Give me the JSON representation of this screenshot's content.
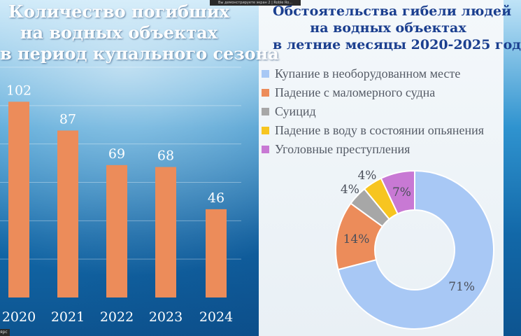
{
  "banner_text": "Вы демонстрируете экран 2 | Roble Ro...",
  "corner_text": "ярс",
  "left_title": [
    "Количество погибших",
    "на водных объектах",
    "в период купального сезона"
  ],
  "right_title": [
    "Обстоятельства гибели людей",
    "на водных объектах",
    "в летние месяцы 2020-2025 год"
  ],
  "chart_data": [
    {
      "type": "bar",
      "categories": [
        "2020",
        "2021",
        "2022",
        "2023",
        "2024"
      ],
      "values": [
        102,
        87,
        69,
        68,
        46
      ],
      "ylim": [
        0,
        120
      ],
      "grid": true,
      "bar_color": "#ec8c5a"
    },
    {
      "type": "pie",
      "subtype": "donut",
      "labels": [
        "Купание в необорудованном месте",
        "Падение с маломерного судна",
        "Суицид",
        "Падение в воду в состоянии опьянения",
        "Уголовные преступления"
      ],
      "values": [
        71,
        14,
        4,
        4,
        7
      ],
      "value_labels": [
        "71%",
        "14%",
        "4%",
        "4%",
        "7%"
      ],
      "colors": [
        "#a8c8f5",
        "#ec8c5a",
        "#a7a7a7",
        "#f7c520",
        "#c879d4"
      ],
      "legend_placement": "top"
    }
  ],
  "legend": [
    {
      "label": "Купание в необорудованном месте",
      "color": "#a8c8f5"
    },
    {
      "label": "Падение с маломерного судна",
      "color": "#ec8c5a"
    },
    {
      "label": "Суицид",
      "color": "#a7a7a7"
    },
    {
      "label": "Падение в воду в состоянии опьянения",
      "color": "#f7c520"
    },
    {
      "label": "Уголовные преступления",
      "color": "#c879d4"
    }
  ]
}
